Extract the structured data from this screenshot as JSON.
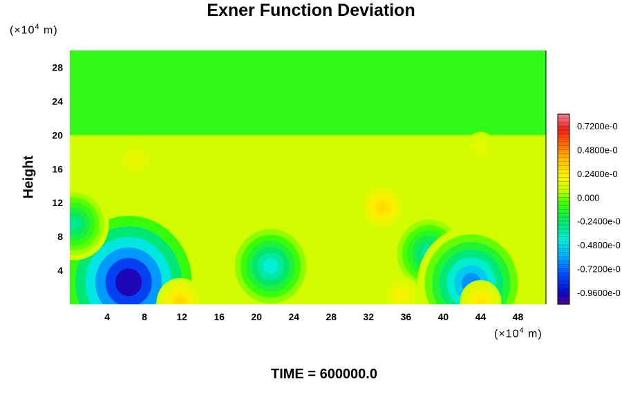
{
  "chart_data": {
    "type": "heatmap",
    "title": "Exner Function Deviation",
    "ylabel": "Height",
    "xlabel": "",
    "x_unit": {
      "prefix": "(×10",
      "exp": "4",
      "suffix": " m)"
    },
    "y_unit": {
      "prefix": "(×10",
      "exp": "4",
      "suffix": " m)"
    },
    "xlim": [
      0,
      51
    ],
    "ylim": [
      0,
      30
    ],
    "x_ticks": [
      "4",
      "8",
      "12",
      "16",
      "20",
      "24",
      "28",
      "32",
      "36",
      "40",
      "44",
      "48"
    ],
    "y_ticks": [
      "4",
      "8",
      "12",
      "16",
      "20",
      "24",
      "28"
    ],
    "colorbar_labels": [
      "0.7200e-0",
      "0.4800e-0",
      "0.2400e-0",
      "0.000",
      "-0.2400e-0",
      "-0.4800e-0",
      "-0.7200e-0",
      "-0.9600e-0"
    ],
    "colorbar_levels": [
      0.72,
      0.48,
      0.24,
      0.0,
      -0.24,
      -0.48,
      -0.72,
      -0.96
    ],
    "colorbar_range": [
      -1.08,
      0.84
    ],
    "background_value": -0.08,
    "upper_layer": {
      "y_from": 20,
      "y_to": 30,
      "value": -0.1
    },
    "lower_layer": {
      "y_from": 0,
      "y_to": 20,
      "value": 0.1
    },
    "features": [
      {
        "x": 6.3,
        "y": 2.6,
        "value": -1.0
      },
      {
        "x": 21.5,
        "y": 4.5,
        "value": -0.42
      },
      {
        "x": 38.5,
        "y": 6.0,
        "value": -0.35
      },
      {
        "x": 43.0,
        "y": 2.5,
        "value": -0.65
      },
      {
        "x": 0.5,
        "y": 9.5,
        "value": -0.3
      },
      {
        "x": 11.8,
        "y": 0.2,
        "value": 0.3
      },
      {
        "x": 33.5,
        "y": 11.5,
        "value": 0.3
      },
      {
        "x": 44.0,
        "y": 0.3,
        "value": 0.25
      },
      {
        "x": 35.5,
        "y": 1.0,
        "value": 0.22
      },
      {
        "x": 7.0,
        "y": 17.0,
        "value": 0.18
      },
      {
        "x": 44.0,
        "y": 18.5,
        "value": 0.15
      }
    ]
  },
  "footer": {
    "time_label": "TIME = 600000.0"
  }
}
